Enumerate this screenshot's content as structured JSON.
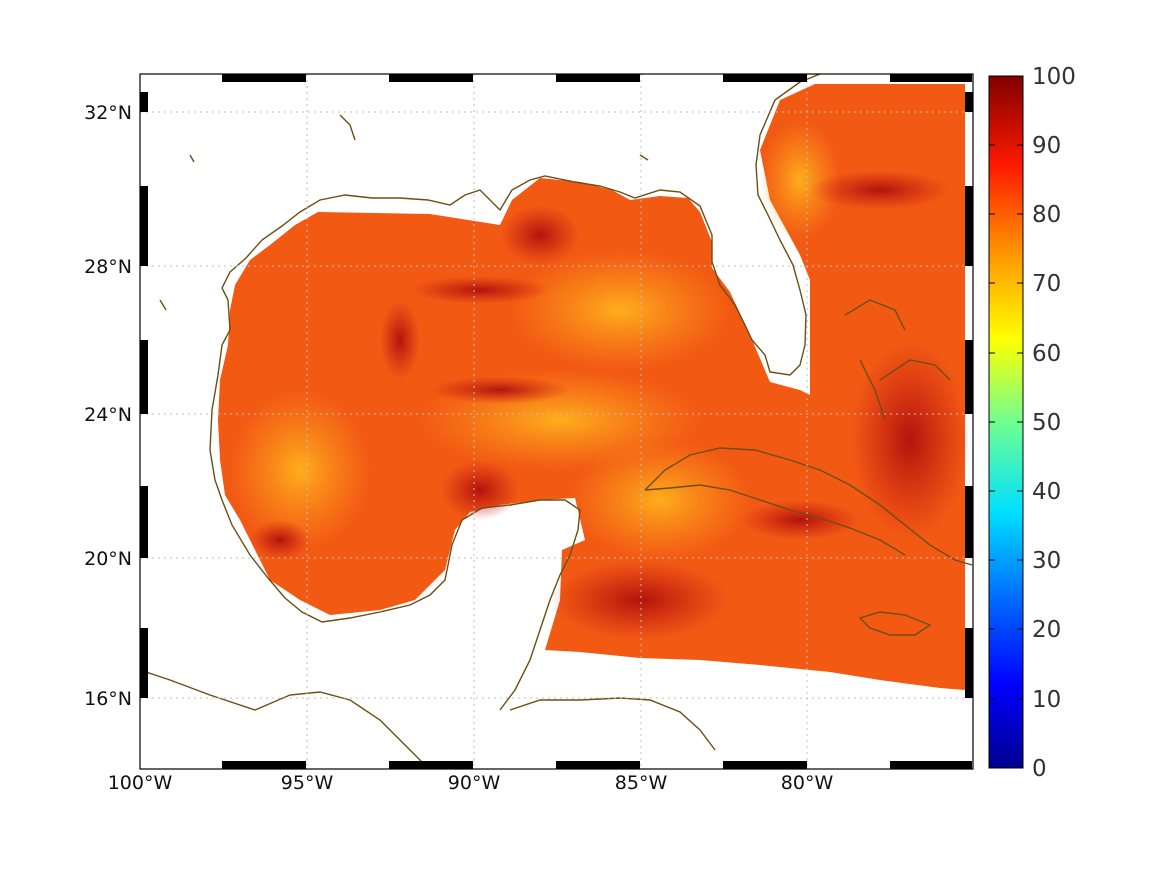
{
  "map": {
    "projection": "equirectangular",
    "lon_range": [
      -100,
      -75
    ],
    "lat_range": [
      14.2,
      33
    ],
    "field_colormap": "jet",
    "coastline_color": "#6b4f13",
    "grid": "dotted",
    "lon_ticks": [
      {
        "value": -100,
        "label": "100°W"
      },
      {
        "value": -95,
        "label": "95°W"
      },
      {
        "value": -90,
        "label": "90°W"
      },
      {
        "value": -85,
        "label": "85°W"
      },
      {
        "value": -80,
        "label": "80°W"
      }
    ],
    "lat_ticks": [
      {
        "value": 32,
        "label": "32°N"
      },
      {
        "value": 28,
        "label": "28°N"
      },
      {
        "value": 24,
        "label": "24°N"
      },
      {
        "value": 20,
        "label": "20°N"
      },
      {
        "value": 16,
        "label": "16°N"
      }
    ]
  },
  "colorbar": {
    "range": [
      0,
      100
    ],
    "ticks": [
      "100",
      "90",
      "80",
      "70",
      "60",
      "50",
      "40",
      "30",
      "20",
      "10",
      "0"
    ],
    "colors": [
      "#00008f",
      "#0000ff",
      "#0080ff",
      "#00ffff",
      "#80ff80",
      "#ffff00",
      "#ff8000",
      "#ff0000",
      "#800000"
    ]
  }
}
